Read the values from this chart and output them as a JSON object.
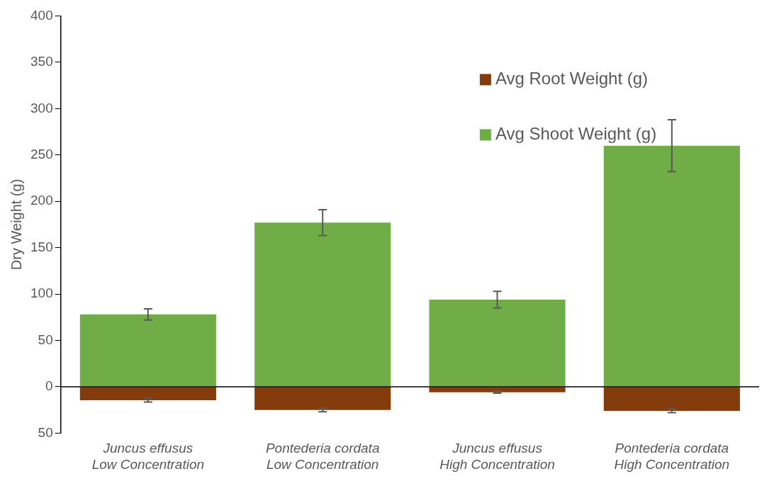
{
  "chart_data": {
    "type": "bar",
    "ylabel": "Dry Weight (g)",
    "categories": [
      "Juncus effusus\nLow Concentration",
      "Pontederia cordata\nLow Concentration",
      "Juncus effusus\nHigh Concentration",
      "Pontederia cordata\nHigh Concentration"
    ],
    "stacked": true,
    "series": [
      {
        "name": "Avg Root Weight (g)",
        "color": "#843c0c",
        "values": [
          -14.5,
          -25,
          -6,
          -26
        ],
        "errors": [
          2,
          2,
          1,
          2
        ]
      },
      {
        "name": "Avg Shoot Weight (g)",
        "color": "#70ad47",
        "values": [
          78,
          177,
          94,
          260
        ],
        "errors": [
          6,
          14,
          9,
          28
        ]
      }
    ],
    "ylim": [
      -50,
      400
    ],
    "yticks": [
      {
        "value": -50,
        "label": "50"
      },
      0,
      50,
      100,
      150,
      200,
      250,
      300,
      350,
      400
    ],
    "legend": "top right"
  }
}
